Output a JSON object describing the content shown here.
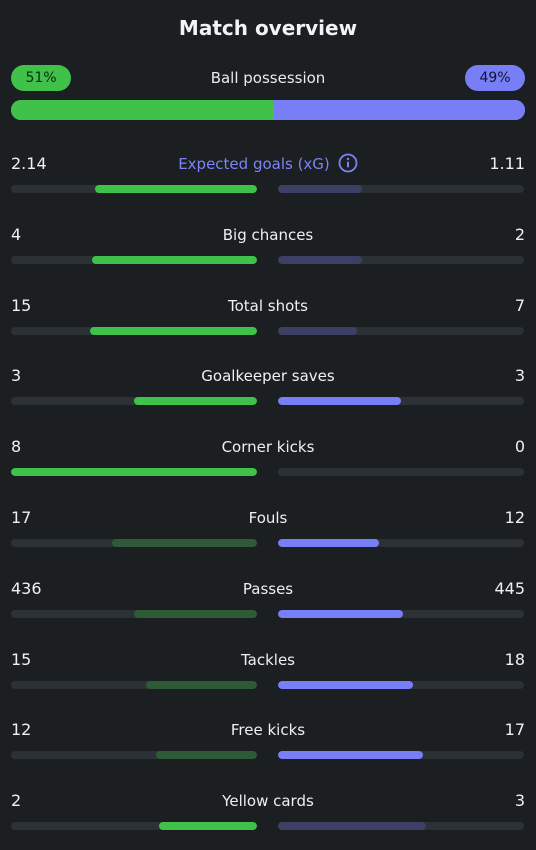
{
  "title": "Match overview",
  "possession": {
    "label": "Ball possession",
    "home_text": "51%",
    "away_text": "49%",
    "home_fraction": 0.51,
    "away_fraction": 0.49
  },
  "colors": {
    "home_bright": "#3fc14a",
    "home_dim": "#2f5a37",
    "away_bright": "#787ef5",
    "away_dim": "#3b4064",
    "track": "#2b3135",
    "xg_label": "#7d83f5"
  },
  "stats": [
    {
      "label": "Expected goals (xG)",
      "home": "2.14",
      "away": "1.11",
      "home_fill": 0.66,
      "away_fill": 0.34,
      "home_style": "bright",
      "away_style": "dim",
      "info": true
    },
    {
      "label": "Big chances",
      "home": "4",
      "away": "2",
      "home_fill": 0.67,
      "away_fill": 0.34,
      "home_style": "bright",
      "away_style": "dim"
    },
    {
      "label": "Total shots",
      "home": "15",
      "away": "7",
      "home_fill": 0.68,
      "away_fill": 0.32,
      "home_style": "bright",
      "away_style": "dim"
    },
    {
      "label": "Goalkeeper saves",
      "home": "3",
      "away": "3",
      "home_fill": 0.5,
      "away_fill": 0.5,
      "home_style": "bright",
      "away_style": "bright"
    },
    {
      "label": "Corner kicks",
      "home": "8",
      "away": "0",
      "home_fill": 1.0,
      "away_fill": 0.0,
      "home_style": "bright",
      "away_style": "dim"
    },
    {
      "label": "Fouls",
      "home": "17",
      "away": "12",
      "home_fill": 0.59,
      "away_fill": 0.41,
      "home_style": "dim",
      "away_style": "bright"
    },
    {
      "label": "Passes",
      "home": "436",
      "away": "445",
      "home_fill": 0.5,
      "away_fill": 0.51,
      "home_style": "dim",
      "away_style": "bright"
    },
    {
      "label": "Tackles",
      "home": "15",
      "away": "18",
      "home_fill": 0.45,
      "away_fill": 0.55,
      "home_style": "dim",
      "away_style": "bright"
    },
    {
      "label": "Free kicks",
      "home": "12",
      "away": "17",
      "home_fill": 0.41,
      "away_fill": 0.59,
      "home_style": "dim",
      "away_style": "bright"
    },
    {
      "label": "Yellow cards",
      "home": "2",
      "away": "3",
      "home_fill": 0.4,
      "away_fill": 0.6,
      "home_style": "bright",
      "away_style": "dim"
    }
  ]
}
